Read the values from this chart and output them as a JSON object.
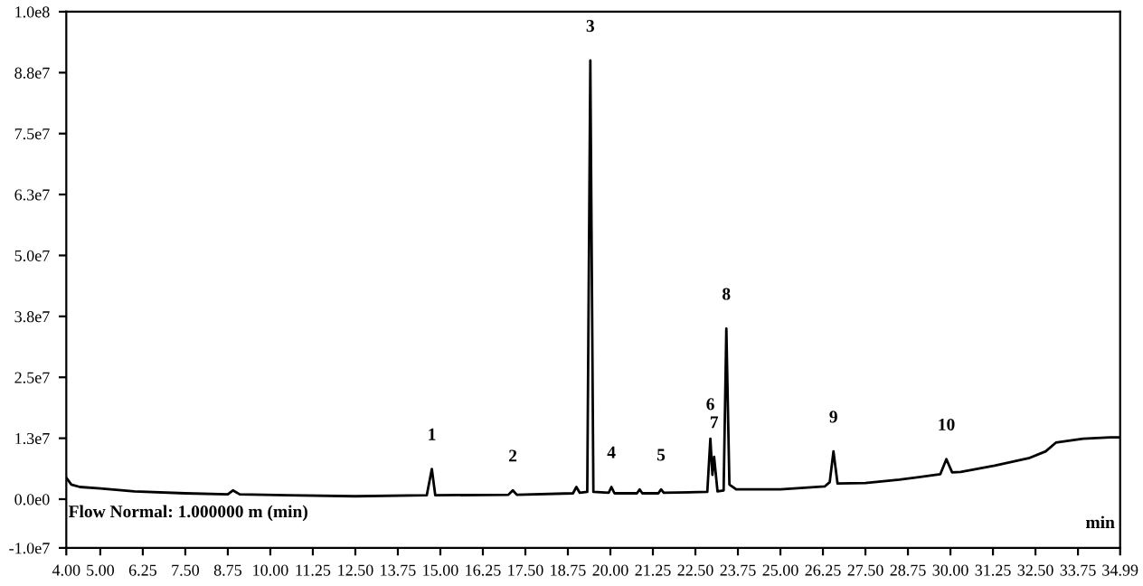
{
  "chart_data": {
    "type": "line",
    "xlim": [
      4.0,
      34.99
    ],
    "ylim": [
      -10000000,
      100000000
    ],
    "xticks": [
      {
        "value": 4.0,
        "label": "4.00"
      },
      {
        "value": 5.0,
        "label": "5.00"
      },
      {
        "value": 6.25,
        "label": "6.25"
      },
      {
        "value": 7.5,
        "label": "7.50"
      },
      {
        "value": 8.75,
        "label": "8.75"
      },
      {
        "value": 10.0,
        "label": "10.00"
      },
      {
        "value": 11.25,
        "label": "11.25"
      },
      {
        "value": 12.5,
        "label": "12.50"
      },
      {
        "value": 13.75,
        "label": "13.75"
      },
      {
        "value": 15.0,
        "label": "15.00"
      },
      {
        "value": 16.25,
        "label": "16.25"
      },
      {
        "value": 17.5,
        "label": "17.50"
      },
      {
        "value": 18.75,
        "label": "18.75"
      },
      {
        "value": 20.0,
        "label": "20.00"
      },
      {
        "value": 21.25,
        "label": "21.25"
      },
      {
        "value": 22.5,
        "label": "22.50"
      },
      {
        "value": 23.75,
        "label": "23.75"
      },
      {
        "value": 25.0,
        "label": "25.00"
      },
      {
        "value": 26.25,
        "label": "26.25"
      },
      {
        "value": 27.5,
        "label": "27.50"
      },
      {
        "value": 28.75,
        "label": "28.75"
      },
      {
        "value": 30.0,
        "label": "30.00"
      },
      {
        "value": 31.25,
        "label": "31.25"
      },
      {
        "value": 32.5,
        "label": "32.50"
      },
      {
        "value": 33.75,
        "label": "33.75"
      },
      {
        "value": 34.99,
        "label": "34.99"
      }
    ],
    "yticks": [
      {
        "value": -10000000,
        "label": "-1.0e7"
      },
      {
        "value": 0,
        "label": "0.0e0"
      },
      {
        "value": 12500000,
        "label": "1.3e7"
      },
      {
        "value": 25000000,
        "label": "2.5e7"
      },
      {
        "value": 37500000,
        "label": "3.8e7"
      },
      {
        "value": 50000000,
        "label": "5.0e7"
      },
      {
        "value": 62500000,
        "label": "6.3e7"
      },
      {
        "value": 75000000,
        "label": "7.5e7"
      },
      {
        "value": 87500000,
        "label": "8.8e7"
      },
      {
        "value": 100000000,
        "label": "1.0e8"
      }
    ],
    "grid": false,
    "legend": false,
    "marker": "none",
    "line_style": "solid",
    "series": [
      {
        "color": "#000000",
        "x": [
          4.0,
          4.15,
          4.4,
          5.0,
          6.0,
          7.5,
          8.75,
          8.9,
          9.1,
          10.5,
          12.5,
          14.6,
          14.75,
          14.85,
          17.0,
          17.13,
          17.25,
          18.9,
          19.0,
          19.1,
          19.32,
          19.41,
          19.5,
          19.95,
          20.03,
          20.12,
          20.78,
          20.86,
          20.94,
          21.41,
          21.49,
          21.57,
          22.85,
          22.94,
          23.0,
          23.05,
          23.15,
          23.33,
          23.41,
          23.5,
          23.7,
          25.0,
          26.3,
          26.45,
          26.56,
          26.68,
          27.5,
          28.5,
          29.7,
          29.88,
          30.05,
          30.3,
          31.3,
          32.3,
          32.8,
          33.1,
          33.9,
          34.7,
          34.99
        ],
        "values": [
          4400000,
          3000000,
          2500000,
          2200000,
          1600000,
          1200000,
          1000000,
          1800000,
          1000000,
          800000,
          600000,
          800000,
          6200000,
          800000,
          900000,
          1800000,
          900000,
          1200000,
          2500000,
          1300000,
          1500000,
          90000000,
          1500000,
          1300000,
          2500000,
          1200000,
          1200000,
          2000000,
          1200000,
          1200000,
          2000000,
          1300000,
          1500000,
          12400000,
          5000000,
          8700000,
          1600000,
          1800000,
          35000000,
          3000000,
          2000000,
          2000000,
          2600000,
          3500000,
          9800000,
          3200000,
          3300000,
          4000000,
          5100000,
          8200000,
          5500000,
          5600000,
          6900000,
          8400000,
          9800000,
          11600000,
          12400000,
          12700000,
          12700000
        ]
      }
    ],
    "annotations": [
      {
        "text": "1",
        "x": 14.75,
        "y": 6200000
      },
      {
        "text": "2",
        "x": 17.13,
        "y": 1800000
      },
      {
        "text": "3",
        "x": 19.41,
        "y": 90000000
      },
      {
        "text": "4",
        "x": 20.03,
        "y": 2500000
      },
      {
        "text": "5",
        "x": 21.49,
        "y": 2000000
      },
      {
        "text": "6",
        "x": 22.94,
        "y": 12400000
      },
      {
        "text": "7",
        "x": 23.05,
        "y": 8700000
      },
      {
        "text": "8",
        "x": 23.41,
        "y": 35000000
      },
      {
        "text": "9",
        "x": 26.56,
        "y": 9800000
      },
      {
        "text": "10",
        "x": 29.88,
        "y": 8200000
      },
      "Flow Normal: 1.000000 m (min)",
      "min"
    ]
  }
}
